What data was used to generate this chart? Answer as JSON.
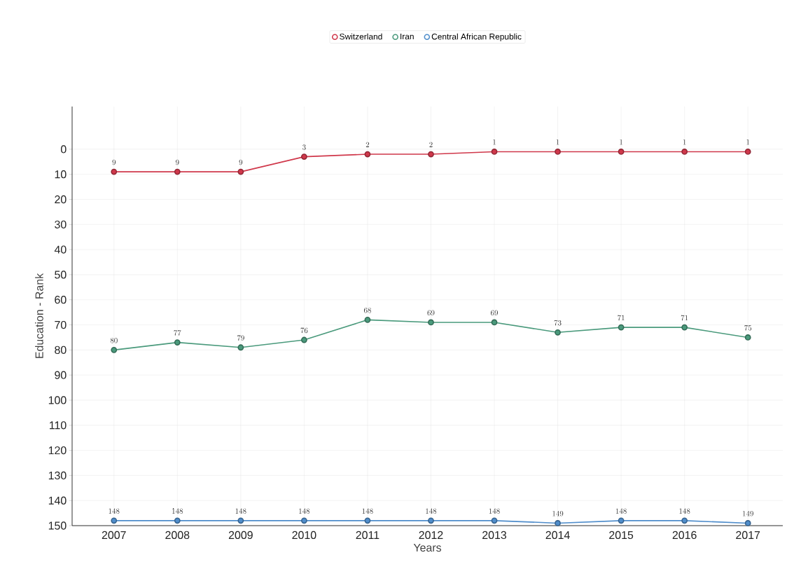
{
  "chart_data": {
    "type": "line",
    "xlabel": "Years",
    "ylabel": "Education - Rank",
    "categories": [
      "2007",
      "2008",
      "2009",
      "2010",
      "2011",
      "2012",
      "2013",
      "2014",
      "2015",
      "2016",
      "2017"
    ],
    "series": [
      {
        "name": "Switzerland",
        "color": "#d0384b",
        "values": [
          9,
          9,
          9,
          3,
          2,
          2,
          1,
          1,
          1,
          1,
          1
        ]
      },
      {
        "name": "Iran",
        "color": "#4a9a7c",
        "values": [
          80,
          77,
          79,
          76,
          68,
          69,
          69,
          73,
          71,
          71,
          75
        ]
      },
      {
        "name": "Central African Republic",
        "color": "#4f8dcb",
        "values": [
          148,
          148,
          148,
          148,
          148,
          148,
          148,
          149,
          148,
          148,
          149
        ]
      }
    ],
    "ylim": [
      150,
      -17
    ],
    "yticks": [
      0,
      10,
      20,
      30,
      40,
      50,
      60,
      70,
      80,
      90,
      100,
      110,
      120,
      130,
      140,
      150
    ],
    "grid": true,
    "legend": "top",
    "marker": "circle",
    "line_style": "solid",
    "data_labels": true
  }
}
